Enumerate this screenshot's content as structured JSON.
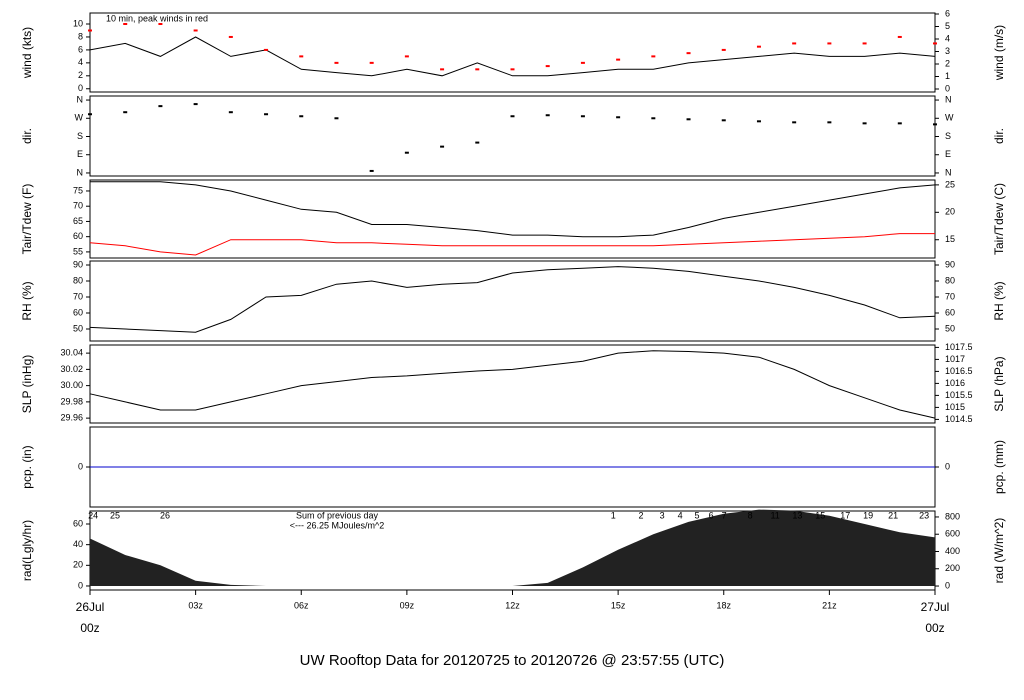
{
  "page_title": "UW Rooftop Data for 20120725  to  20120726 @ 23:57:55  (UTC)",
  "page_title_color": "#1a1aff",
  "chart_data": [
    {
      "type": "line",
      "ylabel": "wind (kts)",
      "y2label": "wind (m/s)",
      "annotation": "10 min, peak winds in red",
      "annotation_color": "#ff0000",
      "x": [
        0,
        1,
        2,
        3,
        4,
        5,
        6,
        7,
        8,
        9,
        10,
        11,
        12,
        13,
        14,
        15,
        16,
        17,
        18,
        19,
        20,
        21,
        22,
        23,
        24
      ],
      "xlim": [
        0,
        24
      ],
      "ylim": [
        -0.5,
        11.7
      ],
      "yticks": [
        0,
        2,
        4,
        6,
        8,
        10
      ],
      "y2lim": [
        -0.24,
        6.08
      ],
      "y2ticks": [
        0,
        1,
        2,
        3,
        4,
        5,
        6
      ],
      "series": [
        {
          "type": "line",
          "color": "#000000",
          "values": [
            6,
            7,
            5,
            8,
            5,
            6,
            3,
            2.5,
            2,
            3,
            2,
            4,
            2,
            2,
            2.5,
            3,
            3,
            4,
            4.5,
            5,
            5.5,
            5,
            5,
            5.5,
            5
          ]
        },
        {
          "type": "scatter",
          "color": "#ff0000",
          "values": [
            9,
            10,
            10,
            9,
            8,
            6,
            5,
            4,
            4,
            5,
            3,
            3,
            3,
            3.5,
            4,
            4.5,
            5,
            5.5,
            6,
            6.5,
            7,
            7,
            7,
            8,
            7
          ]
        }
      ]
    },
    {
      "type": "scatter",
      "ylabel": "dir.",
      "y2label": "dir.",
      "x": [
        0,
        1,
        2,
        3,
        4,
        5,
        6,
        7,
        8,
        9,
        10,
        11,
        12,
        13,
        14,
        15,
        16,
        17,
        18,
        19,
        20,
        21,
        22,
        23,
        24
      ],
      "xlim": [
        0,
        24
      ],
      "ylim": [
        -15,
        380
      ],
      "yticks": [
        {
          "value": 0,
          "label": "N"
        },
        {
          "value": 90,
          "label": "E"
        },
        {
          "value": 180,
          "label": "S"
        },
        {
          "value": 270,
          "label": "W"
        },
        {
          "value": 360,
          "label": "N"
        }
      ],
      "y2lim": [
        -15,
        380
      ],
      "y2ticks": [
        {
          "value": 0,
          "label": "N"
        },
        {
          "value": 90,
          "label": "E"
        },
        {
          "value": 180,
          "label": "S"
        },
        {
          "value": 270,
          "label": "W"
        },
        {
          "value": 360,
          "label": "N"
        }
      ],
      "series": [
        {
          "color": "#000000",
          "values": [
            290,
            300,
            330,
            340,
            300,
            290,
            280,
            270,
            10,
            100,
            130,
            150,
            280,
            285,
            280,
            275,
            270,
            265,
            260,
            255,
            250,
            250,
            245,
            245,
            240
          ]
        }
      ]
    },
    {
      "type": "line",
      "ylabel": "Tair/Tdew (F)",
      "y2label": "Tair/Tdew (C)",
      "x": [
        0,
        1,
        2,
        3,
        4,
        5,
        6,
        7,
        8,
        9,
        10,
        11,
        12,
        13,
        14,
        15,
        16,
        17,
        18,
        19,
        20,
        21,
        22,
        23,
        24
      ],
      "xlim": [
        0,
        24
      ],
      "ylim": [
        53,
        78.6
      ],
      "yticks": [
        55,
        60,
        65,
        70,
        75
      ],
      "y2lim": [
        11.67,
        25.89
      ],
      "y2ticks": [
        15,
        20,
        25
      ],
      "series": [
        {
          "color": "#000000",
          "values": [
            78,
            78,
            78,
            77,
            75,
            72,
            69,
            68,
            64,
            64,
            63,
            62,
            60.5,
            60.5,
            60,
            60,
            60.5,
            63,
            66,
            68,
            70,
            72,
            74,
            76,
            77
          ]
        },
        {
          "color": "#ff0000",
          "values": [
            58,
            57,
            55,
            54,
            59,
            59,
            59,
            58,
            58,
            57.5,
            57,
            57,
            57,
            57,
            57,
            57,
            57,
            57.5,
            58,
            58.5,
            59,
            59.5,
            60,
            61,
            61
          ]
        }
      ]
    },
    {
      "type": "line",
      "ylabel": "RH (%)",
      "y2label": "RH (%)",
      "x": [
        0,
        1,
        2,
        3,
        4,
        5,
        6,
        7,
        8,
        9,
        10,
        11,
        12,
        13,
        14,
        15,
        16,
        17,
        18,
        19,
        20,
        21,
        22,
        23,
        24
      ],
      "xlim": [
        0,
        24
      ],
      "ylim": [
        42.5,
        92.5
      ],
      "yticks": [
        50,
        60,
        70,
        80,
        90
      ],
      "y2lim": [
        42.5,
        92.5
      ],
      "y2ticks": [
        50,
        60,
        70,
        80,
        90
      ],
      "series": [
        {
          "color": "#000000",
          "values": [
            51,
            50,
            49,
            48,
            56,
            70,
            71,
            78,
            80,
            76,
            78,
            79,
            85,
            87,
            88,
            89,
            88,
            86,
            83,
            80,
            76,
            71,
            65,
            57,
            58
          ]
        }
      ]
    },
    {
      "type": "line",
      "ylabel": "SLP (inHg)",
      "y2label": "SLP (hPa)",
      "x": [
        0,
        1,
        2,
        3,
        4,
        5,
        6,
        7,
        8,
        9,
        10,
        11,
        12,
        13,
        14,
        15,
        16,
        17,
        18,
        19,
        20,
        21,
        22,
        23,
        24
      ],
      "xlim": [
        0,
        24
      ],
      "ylim": [
        29.954,
        30.05
      ],
      "yticks": [
        29.96,
        29.98,
        {
          "value": 30,
          "label": "30.00"
        },
        30.02,
        30.04
      ],
      "y2lim": [
        1014.35,
        1017.6
      ],
      "y2ticks": [
        1014.5,
        1015,
        1015.5,
        1016,
        1016.5,
        1017,
        1017.5
      ],
      "series": [
        {
          "color": "#000000",
          "values": [
            29.99,
            29.98,
            29.97,
            29.97,
            29.98,
            29.99,
            30.0,
            30.005,
            30.01,
            30.012,
            30.015,
            30.018,
            30.02,
            30.025,
            30.03,
            30.04,
            30.043,
            30.042,
            30.04,
            30.035,
            30.02,
            30.0,
            29.985,
            29.97,
            29.96
          ]
        }
      ]
    },
    {
      "type": "line",
      "ylabel": "pcp. (in)",
      "y2label": "pcp. (mm)",
      "x": [
        0,
        1,
        2,
        3,
        4,
        5,
        6,
        7,
        8,
        9,
        10,
        11,
        12,
        13,
        14,
        15,
        16,
        17,
        18,
        19,
        20,
        21,
        22,
        23,
        24
      ],
      "xlim": [
        0,
        24
      ],
      "ylim": [
        -1,
        1
      ],
      "yticks": [
        0
      ],
      "y2lim": [
        -1,
        1
      ],
      "y2ticks": [
        0
      ],
      "series": [
        {
          "color": "#0000cc",
          "values": [
            0,
            0,
            0,
            0,
            0,
            0,
            0,
            0,
            0,
            0,
            0,
            0,
            0,
            0,
            0,
            0,
            0,
            0,
            0,
            0,
            0,
            0,
            0,
            0,
            0
          ]
        }
      ]
    },
    {
      "type": "area",
      "ylabel": "rad(Lgly/hr)",
      "y2label": "rad (W/m^2)",
      "annotations": [
        "Sum of previous day",
        "<--- 26.25 MJoules/m^2"
      ],
      "annotation_color": "#9900cc",
      "top_labels": {
        "x": [
          0.09,
          0.71,
          2.13,
          14.86,
          15.65,
          16.25,
          16.76,
          17.24,
          17.64,
          18.01,
          18.75,
          19.46,
          20.09,
          20.74,
          21.45,
          22.1,
          22.81,
          23.69
        ],
        "labels": [
          "24",
          "25",
          "26",
          "1",
          "2",
          "3",
          "4",
          "5",
          "6",
          "7",
          "8",
          "11",
          "13",
          "15",
          "17",
          "19",
          "21",
          "23"
        ]
      },
      "x": [
        0,
        1,
        2,
        3,
        4,
        5,
        6,
        7,
        8,
        9,
        10,
        11,
        12,
        13,
        14,
        15,
        16,
        17,
        18,
        19,
        20,
        21,
        22,
        23,
        24
      ],
      "xlim": [
        0,
        24
      ],
      "ylim": [
        -3.9,
        72.6
      ],
      "yticks": [
        0,
        20,
        40,
        60
      ],
      "y2lim": [
        -46,
        869
      ],
      "y2ticks": [
        0,
        200,
        400,
        600,
        800
      ],
      "xticks": [
        {
          "value": 0,
          "label": [
            "26Jul",
            "00z"
          ],
          "color": "#ff0000"
        },
        {
          "value": 3,
          "label": "03z"
        },
        {
          "value": 6,
          "label": "06z"
        },
        {
          "value": 9,
          "label": "09z"
        },
        {
          "value": 12,
          "label": "12z"
        },
        {
          "value": 15,
          "label": "15z"
        },
        {
          "value": 18,
          "label": "18z"
        },
        {
          "value": 21,
          "label": "21z"
        },
        {
          "value": 24,
          "label": [
            "27Jul",
            "00z"
          ],
          "color": "#ff0000"
        }
      ],
      "series": [
        {
          "color": "#222222",
          "values": [
            46,
            30,
            20,
            5,
            1,
            0,
            0,
            0,
            0,
            0,
            0,
            0,
            0,
            3,
            18,
            35,
            50,
            62,
            70,
            74,
            73,
            68,
            60,
            52,
            47
          ]
        }
      ]
    }
  ]
}
